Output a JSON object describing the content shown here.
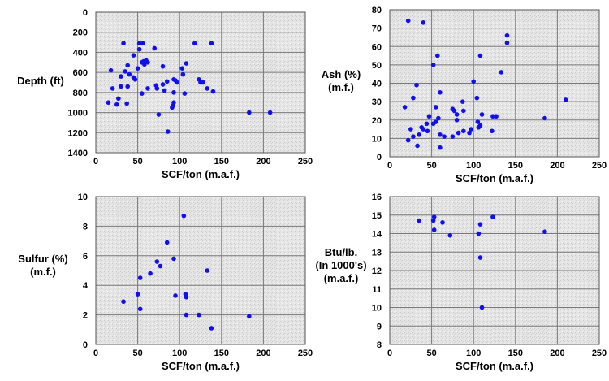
{
  "colors": {
    "point": "#1010ee",
    "grid": "#7a7a7a",
    "plot_bg": "#e6e6e6",
    "border": "#555555"
  },
  "chart_data": [
    {
      "type": "scatter",
      "ylabel": [
        "Depth (ft)"
      ],
      "xlabel": "SCF/ton (m.a.f.)",
      "xlim": [
        0,
        250
      ],
      "ylim": [
        0,
        1400
      ],
      "y_inverted": true,
      "grid": true,
      "x_ticks": [
        0,
        50,
        100,
        150,
        200,
        250
      ],
      "y_ticks": [
        0,
        200,
        400,
        600,
        800,
        1000,
        1200,
        1400
      ],
      "points": [
        [
          33,
          310
        ],
        [
          52,
          310
        ],
        [
          56,
          310
        ],
        [
          70,
          360
        ],
        [
          52,
          370
        ],
        [
          45,
          430
        ],
        [
          57,
          490
        ],
        [
          60,
          480
        ],
        [
          55,
          500
        ],
        [
          62,
          500
        ],
        [
          58,
          520
        ],
        [
          38,
          530
        ],
        [
          50,
          560
        ],
        [
          108,
          510
        ],
        [
          80,
          540
        ],
        [
          18,
          580
        ],
        [
          35,
          590
        ],
        [
          40,
          620
        ],
        [
          45,
          650
        ],
        [
          47,
          670
        ],
        [
          30,
          640
        ],
        [
          103,
          560
        ],
        [
          104,
          620
        ],
        [
          118,
          310
        ],
        [
          138,
          310
        ],
        [
          123,
          670
        ],
        [
          125,
          700
        ],
        [
          128,
          700
        ],
        [
          85,
          690
        ],
        [
          93,
          670
        ],
        [
          95,
          680
        ],
        [
          72,
          730
        ],
        [
          80,
          720
        ],
        [
          62,
          760
        ],
        [
          73,
          760
        ],
        [
          97,
          700
        ],
        [
          30,
          740
        ],
        [
          38,
          740
        ],
        [
          20,
          760
        ],
        [
          93,
          800
        ],
        [
          106,
          810
        ],
        [
          133,
          760
        ],
        [
          140,
          790
        ],
        [
          82,
          780
        ],
        [
          55,
          810
        ],
        [
          27,
          860
        ],
        [
          15,
          900
        ],
        [
          25,
          920
        ],
        [
          37,
          910
        ],
        [
          93,
          900
        ],
        [
          92,
          930
        ],
        [
          91,
          950
        ],
        [
          75,
          1020
        ],
        [
          86,
          1190
        ],
        [
          183,
          1000
        ],
        [
          208,
          1000
        ]
      ]
    },
    {
      "type": "scatter",
      "ylabel": [
        "Ash (%)",
        "(m.f.)"
      ],
      "xlabel": "SCF/ton (m.a.f.)",
      "xlim": [
        0,
        250
      ],
      "ylim": [
        0,
        80
      ],
      "grid": true,
      "x_ticks": [
        0,
        50,
        100,
        150,
        200,
        250
      ],
      "y_ticks": [
        0,
        10,
        20,
        30,
        40,
        50,
        60,
        70,
        80
      ],
      "points": [
        [
          22,
          74
        ],
        [
          40,
          73
        ],
        [
          140,
          66
        ],
        [
          140,
          62
        ],
        [
          57,
          55
        ],
        [
          108,
          55
        ],
        [
          52,
          50
        ],
        [
          133,
          46
        ],
        [
          100,
          41
        ],
        [
          32,
          39
        ],
        [
          60,
          35
        ],
        [
          28,
          32
        ],
        [
          18,
          27
        ],
        [
          55,
          27
        ],
        [
          75,
          26
        ],
        [
          77,
          25
        ],
        [
          88,
          25
        ],
        [
          47,
          22
        ],
        [
          80,
          23
        ],
        [
          110,
          23
        ],
        [
          123,
          22
        ],
        [
          127,
          22
        ],
        [
          210,
          31
        ],
        [
          185,
          21
        ],
        [
          44,
          18
        ],
        [
          52,
          18
        ],
        [
          55,
          19
        ],
        [
          58,
          21
        ],
        [
          80,
          20
        ],
        [
          105,
          19
        ],
        [
          106,
          16
        ],
        [
          108,
          17
        ],
        [
          38,
          16
        ],
        [
          40,
          15
        ],
        [
          25,
          15
        ],
        [
          45,
          14
        ],
        [
          35,
          12
        ],
        [
          60,
          12
        ],
        [
          65,
          11
        ],
        [
          75,
          11
        ],
        [
          82,
          13
        ],
        [
          88,
          14
        ],
        [
          95,
          13
        ],
        [
          97,
          15
        ],
        [
          28,
          11
        ],
        [
          22,
          9
        ],
        [
          33,
          6
        ],
        [
          60,
          5
        ],
        [
          122,
          14
        ],
        [
          87,
          30
        ],
        [
          104,
          32
        ]
      ]
    },
    {
      "type": "scatter",
      "ylabel": [
        "Sulfur (%)",
        "(m.f.)"
      ],
      "xlabel": "SCF/ton (m.a.f.)",
      "xlim": [
        0,
        250
      ],
      "ylim": [
        0,
        10
      ],
      "grid": true,
      "x_ticks": [
        0,
        50,
        100,
        150,
        200,
        250
      ],
      "y_ticks": [
        0,
        2,
        4,
        6,
        8,
        10
      ],
      "points": [
        [
          105,
          8.7
        ],
        [
          85,
          6.9
        ],
        [
          93,
          5.8
        ],
        [
          73,
          5.6
        ],
        [
          77,
          5.3
        ],
        [
          133,
          5.0
        ],
        [
          65,
          4.8
        ],
        [
          53,
          4.5
        ],
        [
          50,
          3.4
        ],
        [
          95,
          3.3
        ],
        [
          107,
          3.4
        ],
        [
          108,
          3.2
        ],
        [
          33,
          2.9
        ],
        [
          53,
          2.4
        ],
        [
          108,
          2.0
        ],
        [
          123,
          2.0
        ],
        [
          183,
          1.9
        ],
        [
          138,
          1.1
        ]
      ]
    },
    {
      "type": "scatter",
      "ylabel": [
        "Btu/lb.",
        "(In 1000's)",
        "(m.a.f.)"
      ],
      "xlabel": "SCF/ton (m.a.f.)",
      "xlim": [
        0,
        250
      ],
      "ylim": [
        8,
        16
      ],
      "grid": true,
      "x_ticks": [
        0,
        50,
        100,
        150,
        200,
        250
      ],
      "y_ticks": [
        8,
        9,
        10,
        11,
        12,
        13,
        14,
        15,
        16
      ],
      "points": [
        [
          35,
          14.7
        ],
        [
          52,
          14.7
        ],
        [
          53,
          14.9
        ],
        [
          63,
          14.6
        ],
        [
          123,
          14.9
        ],
        [
          108,
          14.5
        ],
        [
          53,
          14.2
        ],
        [
          72,
          13.9
        ],
        [
          106,
          14.0
        ],
        [
          185,
          14.1
        ],
        [
          108,
          12.7
        ],
        [
          110,
          10.0
        ]
      ]
    }
  ]
}
